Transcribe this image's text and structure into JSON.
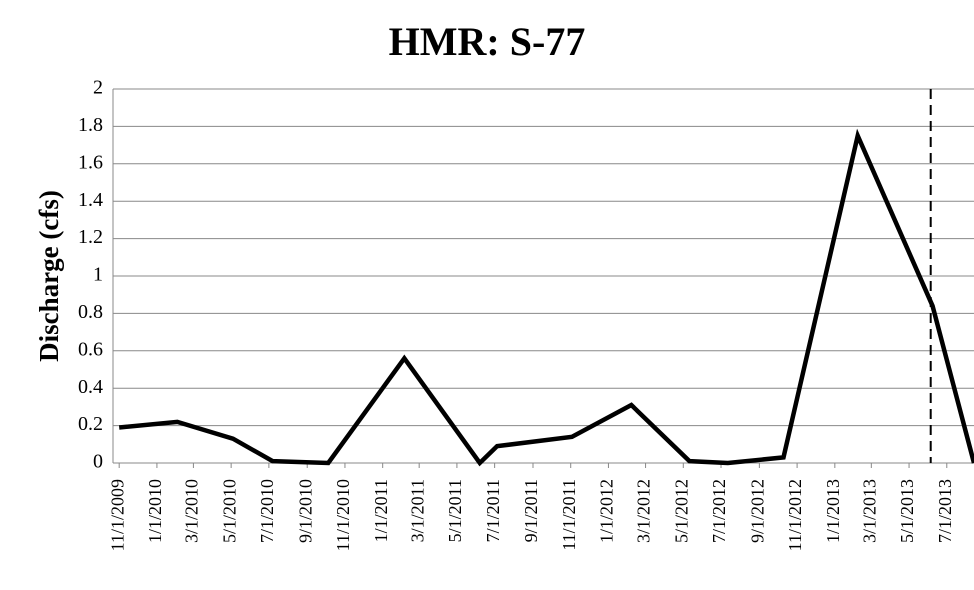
{
  "chart_data": {
    "type": "line",
    "title": "HMR:  S-77",
    "y_label": "Discharge (cfs)",
    "x": [
      "11/1/2009",
      "2/3/2010",
      "5/4/2010",
      "7/7/2010",
      "10/5/2010",
      "2/5/2011",
      "6/7/2011",
      "7/5/2011",
      "11/3/2011",
      "2/7/2012",
      "5/11/2012",
      "7/12/2012",
      "10/10/2012",
      "2/7/2013",
      "6/8/2013",
      "8/14/2013"
    ],
    "series": [
      {
        "name": "S-77",
        "color": "#000000",
        "values": [
          0.19,
          0.22,
          0.13,
          0.01,
          0.0,
          0.56,
          0.0,
          0.09,
          0.14,
          0.31,
          0.01,
          0.0,
          0.03,
          1.75,
          0.84,
          0.0
        ]
      }
    ],
    "xlim": [
      "10/22/2009",
      "8/14/2013"
    ],
    "xticks": [
      "11/1/2009",
      "1/1/2010",
      "3/1/2010",
      "5/1/2010",
      "7/1/2010",
      "9/1/2010",
      "11/1/2010",
      "1/1/2011",
      "3/1/2011",
      "5/1/2011",
      "7/1/2011",
      "9/1/2011",
      "11/1/2011",
      "1/1/2012",
      "3/1/2012",
      "5/1/2012",
      "7/1/2012",
      "9/1/2012",
      "11/1/2012",
      "1/1/2013",
      "3/1/2013",
      "5/1/2013",
      "7/1/2013"
    ],
    "ylim": [
      0,
      2
    ],
    "yticks": [
      0,
      0.2,
      0.4,
      0.6,
      0.8,
      1,
      1.2,
      1.4,
      1.6,
      1.8,
      2
    ],
    "grid": true,
    "reference_line": "6/5/2013"
  }
}
